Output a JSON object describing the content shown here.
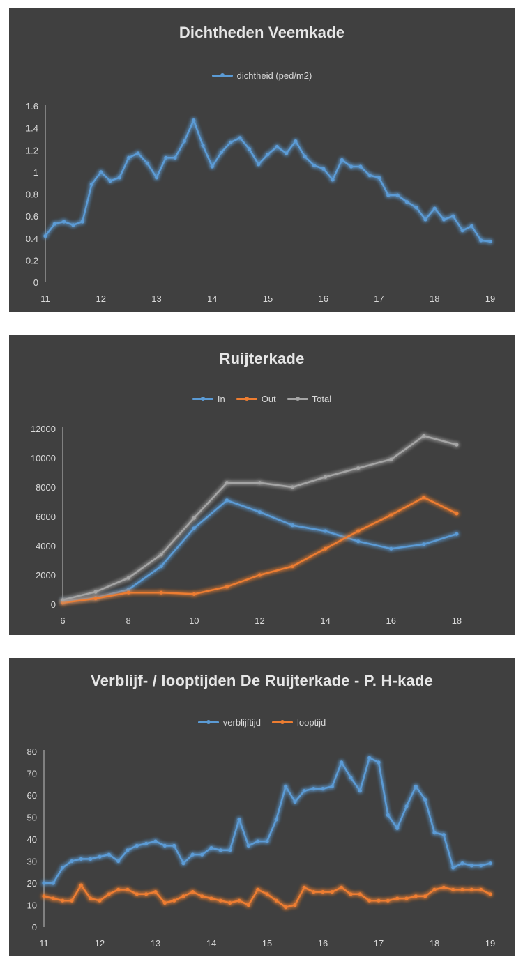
{
  "chart_data": [
    {
      "type": "line",
      "title": "Dichtheden Veemkade",
      "xlim": [
        11,
        19
      ],
      "ylim": [
        0,
        1.6
      ],
      "xticks": [
        "11",
        "12",
        "13",
        "14",
        "15",
        "16",
        "17",
        "18",
        "19"
      ],
      "yticks": [
        "0",
        "0.2",
        "0.4",
        "0.6",
        "0.8",
        "1",
        "1.2",
        "1.4",
        "1.6"
      ],
      "series": [
        {
          "name": "dichtheid (ped/m2)",
          "color": "#5b9bd5",
          "x": [
            11,
            11.1667,
            11.3333,
            11.5,
            11.6667,
            11.8333,
            12,
            12.1667,
            12.3333,
            12.5,
            12.6667,
            12.8333,
            13,
            13.1667,
            13.3333,
            13.5,
            13.6667,
            13.8333,
            14,
            14.1667,
            14.3333,
            14.5,
            14.6667,
            14.8333,
            15,
            15.1667,
            15.3333,
            15.5,
            15.6667,
            15.8333,
            16,
            16.1667,
            16.3333,
            16.5,
            16.6667,
            16.8333,
            17,
            17.1667,
            17.3333,
            17.5,
            17.6667,
            17.8333,
            18,
            18.1667,
            18.3333,
            18.5,
            18.6667,
            18.8333,
            19
          ],
          "y": [
            0.42,
            0.53,
            0.55,
            0.52,
            0.55,
            0.89,
            1.0,
            0.92,
            0.95,
            1.13,
            1.17,
            1.08,
            0.95,
            1.13,
            1.13,
            1.28,
            1.47,
            1.24,
            1.05,
            1.18,
            1.27,
            1.31,
            1.21,
            1.07,
            1.16,
            1.23,
            1.17,
            1.28,
            1.14,
            1.06,
            1.03,
            0.93,
            1.11,
            1.05,
            1.05,
            0.97,
            0.95,
            0.79,
            0.79,
            0.73,
            0.68,
            0.57,
            0.67,
            0.57,
            0.6,
            0.47,
            0.51,
            0.38,
            0.37
          ]
        }
      ]
    },
    {
      "type": "line",
      "title": "Ruijterkade",
      "xlim": [
        6,
        19
      ],
      "ylim": [
        0,
        12000
      ],
      "xticks": [
        "6",
        "8",
        "10",
        "12",
        "14",
        "16",
        "18"
      ],
      "yticks": [
        "0",
        "2000",
        "4000",
        "6000",
        "8000",
        "10000",
        "12000"
      ],
      "series": [
        {
          "name": "In",
          "color": "#5b9bd5",
          "x": [
            6,
            7,
            8,
            9,
            10,
            11,
            12,
            13,
            14,
            15,
            16,
            17,
            18
          ],
          "y": [
            200,
            450,
            1000,
            2600,
            5200,
            7100,
            6300,
            5400,
            5000,
            4300,
            3800,
            4100,
            4800
          ]
        },
        {
          "name": "Out",
          "color": "#ed7d31",
          "x": [
            6,
            7,
            8,
            9,
            10,
            11,
            12,
            13,
            14,
            15,
            16,
            17,
            18
          ],
          "y": [
            100,
            400,
            800,
            800,
            700,
            1200,
            2000,
            2600,
            3800,
            5000,
            6100,
            7300,
            6200
          ]
        },
        {
          "name": "Total",
          "color": "#a5a5a5",
          "x": [
            6,
            7,
            8,
            9,
            10,
            11,
            12,
            13,
            14,
            15,
            16,
            17,
            18
          ],
          "y": [
            300,
            850,
            1800,
            3400,
            5900,
            8300,
            8300,
            8000,
            8700,
            9300,
            9900,
            11500,
            10900
          ]
        }
      ]
    },
    {
      "type": "line",
      "title": "Verblijf- / looptijden De Ruijterkade - P. H-kade",
      "xlim": [
        11,
        19
      ],
      "ylim": [
        0,
        80
      ],
      "xticks": [
        "11",
        "12",
        "13",
        "14",
        "15",
        "16",
        "17",
        "18",
        "19"
      ],
      "yticks": [
        "0",
        "10",
        "20",
        "30",
        "40",
        "50",
        "60",
        "70",
        "80"
      ],
      "series": [
        {
          "name": "verblijftijd",
          "color": "#5b9bd5",
          "x": [
            11,
            11.1667,
            11.3333,
            11.5,
            11.6667,
            11.8333,
            12,
            12.1667,
            12.3333,
            12.5,
            12.6667,
            12.8333,
            13,
            13.1667,
            13.3333,
            13.5,
            13.6667,
            13.8333,
            14,
            14.1667,
            14.3333,
            14.5,
            14.6667,
            14.8333,
            15,
            15.1667,
            15.3333,
            15.5,
            15.6667,
            15.8333,
            16,
            16.1667,
            16.3333,
            16.5,
            16.6667,
            16.8333,
            17,
            17.1667,
            17.3333,
            17.5,
            17.6667,
            17.8333,
            18,
            18.1667,
            18.3333,
            18.5,
            18.6667,
            18.8333,
            19
          ],
          "y": [
            20,
            20,
            27,
            30,
            31,
            31,
            32,
            33,
            30,
            35,
            37,
            38,
            39,
            37,
            37,
            29,
            33,
            33,
            36,
            35,
            35,
            49,
            37,
            39,
            39,
            49,
            64,
            57,
            62,
            63,
            63,
            64,
            75,
            68,
            62,
            77,
            75,
            51,
            45,
            55,
            64,
            58,
            43,
            42,
            27,
            29,
            28,
            28,
            29
          ]
        },
        {
          "name": "looptijd",
          "color": "#ed7d31",
          "x": [
            11,
            11.1667,
            11.3333,
            11.5,
            11.6667,
            11.8333,
            12,
            12.1667,
            12.3333,
            12.5,
            12.6667,
            12.8333,
            13,
            13.1667,
            13.3333,
            13.5,
            13.6667,
            13.8333,
            14,
            14.1667,
            14.3333,
            14.5,
            14.6667,
            14.8333,
            15,
            15.1667,
            15.3333,
            15.5,
            15.6667,
            15.8333,
            16,
            16.1667,
            16.3333,
            16.5,
            16.6667,
            16.8333,
            17,
            17.1667,
            17.3333,
            17.5,
            17.6667,
            17.8333,
            18,
            18.1667,
            18.3333,
            18.5,
            18.6667,
            18.8333,
            19
          ],
          "y": [
            14,
            13,
            12,
            12,
            19,
            13,
            12,
            15,
            17,
            17,
            15,
            15,
            16,
            11,
            12,
            14,
            16,
            14,
            13,
            12,
            11,
            12,
            10,
            17,
            15,
            12,
            9,
            10,
            18,
            16,
            16,
            16,
            18,
            15,
            15,
            12,
            12,
            12,
            13,
            13,
            14,
            14,
            17,
            18,
            17,
            17,
            17,
            17,
            15
          ]
        }
      ]
    }
  ]
}
